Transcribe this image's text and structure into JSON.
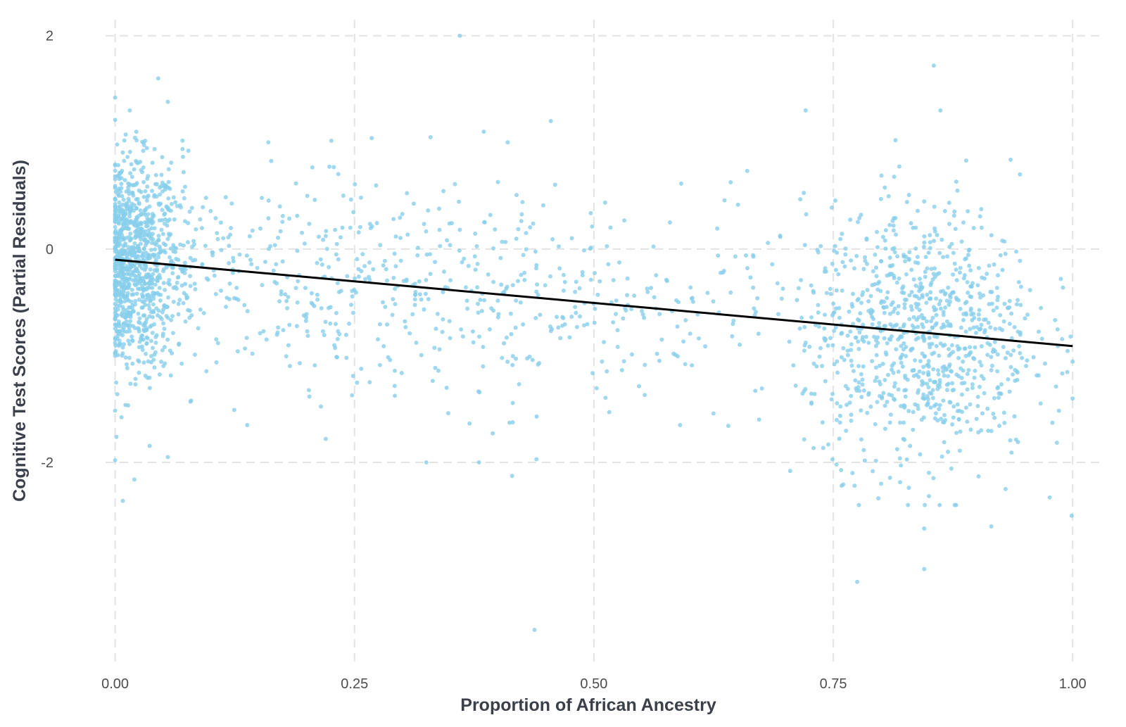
{
  "chart_data": {
    "type": "scatter",
    "xlabel": "Proportion of African Ancestry",
    "ylabel": "Cognitive Test Scores (Partial Residuals)",
    "xlim": [
      -0.01,
      1.03
    ],
    "ylim": [
      -3.9,
      2.15
    ],
    "x_ticks": [
      0.0,
      0.25,
      0.5,
      0.75,
      1.0
    ],
    "x_tick_labels": [
      "0.00",
      "0.25",
      "0.50",
      "0.75",
      "1.00"
    ],
    "y_ticks": [
      -2,
      0,
      2
    ],
    "y_tick_labels": [
      "-2",
      "0",
      "2"
    ],
    "grid": true,
    "legend": "none",
    "colors": {
      "points": "#87ceeb",
      "trend": "#000000",
      "grid": "#e3e3e3"
    },
    "fit_line": {
      "x": [
        0.0,
        1.0
      ],
      "y": [
        -0.1,
        -0.91
      ]
    },
    "clusters": [
      {
        "x_center": 0.02,
        "x_spread": 0.035,
        "y_center": -0.15,
        "y_spread": 0.5,
        "count": 900
      },
      {
        "x_center": 0.3,
        "x_spread": 0.22,
        "y_center": -0.45,
        "y_spread": 0.55,
        "count": 700
      },
      {
        "x_center": 0.84,
        "x_spread": 0.06,
        "y_center": -0.8,
        "y_spread": 0.6,
        "count": 900
      }
    ],
    "points": [
      [
        0.36,
        2.0
      ],
      [
        0.855,
        1.72
      ],
      [
        0.045,
        1.6
      ],
      [
        0.055,
        1.38
      ],
      [
        0.0,
        1.42
      ],
      [
        0.455,
        1.2
      ],
      [
        0.385,
        1.1
      ],
      [
        0.41,
        1.0
      ],
      [
        0.815,
        1.02
      ],
      [
        0.16,
        1.0
      ],
      [
        0.945,
        0.7
      ],
      [
        0.0,
        -1.98
      ],
      [
        0.008,
        -2.36
      ],
      [
        0.055,
        -1.95
      ],
      [
        0.775,
        -3.12
      ],
      [
        0.845,
        -3.0
      ],
      [
        0.438,
        -3.57
      ],
      [
        0.999,
        -2.5
      ],
      [
        0.915,
        -2.6
      ],
      [
        0.845,
        -2.62
      ],
      [
        0.705,
        -2.08
      ],
      [
        0.325,
        -2.0
      ],
      [
        0.44,
        -1.97
      ],
      [
        0.38,
        -2.0
      ],
      [
        0.22,
        -1.78
      ],
      [
        0.138,
        -1.65
      ],
      [
        0.59,
        -1.65
      ],
      [
        0.77,
        -2.1
      ],
      [
        0.8,
        -2.2
      ],
      [
        0.93,
        -2.25
      ]
    ]
  }
}
